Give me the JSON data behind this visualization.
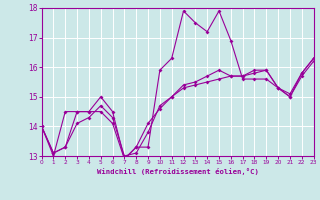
{
  "xlabel": "Windchill (Refroidissement éolien,°C)",
  "ylabel": "",
  "bg_color": "#cce8e8",
  "line_color": "#990099",
  "grid_color": "#ffffff",
  "xlim": [
    0,
    23
  ],
  "ylim": [
    13,
    18
  ],
  "yticks": [
    13,
    14,
    15,
    16,
    17,
    18
  ],
  "xticks": [
    0,
    1,
    2,
    3,
    4,
    5,
    6,
    7,
    8,
    9,
    10,
    11,
    12,
    13,
    14,
    15,
    16,
    17,
    18,
    19,
    20,
    21,
    22,
    23
  ],
  "series1_x": [
    0,
    1,
    2,
    3,
    4,
    5,
    6,
    7,
    8,
    9,
    10,
    11,
    12,
    13,
    14,
    15,
    16,
    17,
    18,
    19,
    20,
    21,
    22,
    23
  ],
  "series1_y": [
    14.0,
    13.0,
    14.5,
    14.5,
    14.5,
    15.0,
    14.5,
    12.9,
    13.3,
    13.3,
    15.9,
    16.3,
    17.9,
    17.5,
    17.2,
    17.9,
    16.9,
    15.6,
    15.6,
    15.6,
    15.3,
    15.0,
    15.8,
    16.3
  ],
  "series2_x": [
    0,
    1,
    2,
    3,
    4,
    5,
    6,
    7,
    8,
    9,
    10,
    11,
    12,
    13,
    14,
    15,
    16,
    17,
    18,
    19,
    20,
    21,
    22,
    23
  ],
  "series2_y": [
    14.0,
    13.1,
    13.3,
    14.5,
    14.5,
    14.5,
    14.1,
    12.9,
    13.3,
    14.1,
    14.6,
    15.0,
    15.3,
    15.4,
    15.5,
    15.6,
    15.7,
    15.7,
    15.8,
    15.9,
    15.3,
    15.1,
    15.8,
    16.3
  ],
  "series3_x": [
    0,
    1,
    2,
    3,
    4,
    5,
    6,
    7,
    8,
    9,
    10,
    11,
    12,
    13,
    14,
    15,
    16,
    17,
    18,
    19,
    20,
    21,
    22,
    23
  ],
  "series3_y": [
    14.0,
    13.1,
    13.3,
    14.1,
    14.3,
    14.7,
    14.3,
    13.0,
    13.1,
    13.8,
    14.7,
    15.0,
    15.4,
    15.5,
    15.7,
    15.9,
    15.7,
    15.7,
    15.9,
    15.9,
    15.3,
    15.0,
    15.7,
    16.2
  ]
}
